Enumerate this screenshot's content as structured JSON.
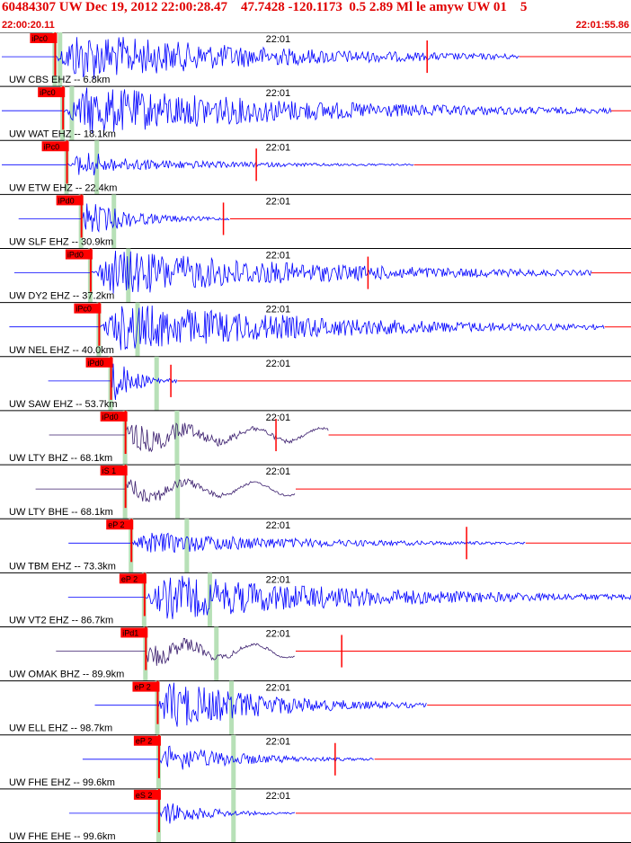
{
  "header": {
    "title": "60484307 UW Dec 19, 2012 22:00:28.47    47.7428 -120.1173  0.5 2.89 Ml le amyw UW 01    5",
    "start_time": "22:00:20.11",
    "end_time": "22:01:55.86"
  },
  "colors": {
    "title": "#e00000",
    "wave": "#0000ff",
    "wave_horizontal": "#3b1e6e",
    "pick": "#ff0000",
    "s_window": "#b7e0b7",
    "grid": "#000000"
  },
  "chart_data": {
    "type": "line",
    "title": "60484307 UW Dec 19, 2012 22:00:28.47    47.7428 -120.1173  0.5 2.89 Ml le amyw UW 01    5",
    "x_range": [
      "22:00:20.11",
      "22:01:55.86"
    ],
    "minute_marker": "22:01",
    "traces": [
      {
        "label": "UW CBS EHZ -- 6.8km",
        "pick": "iPc0",
        "p_time_s": 8.4,
        "s_time_s": 9.2,
        "coda_end_s": 74,
        "amp": 1.0,
        "trend": "flat",
        "end_pick_s": 65
      },
      {
        "label": "UW WAT EHZ -- 18.1km",
        "pick": "iPc0",
        "p_time_s": 9.6,
        "s_time_s": 11.0,
        "coda_end_s": 88,
        "amp": 1.0,
        "trend": "flat",
        "end_pick_s": null
      },
      {
        "label": "UW ETW EHZ -- 22.4km",
        "pick": "iPc0",
        "p_time_s": 10.2,
        "s_time_s": 14.8,
        "coda_end_s": 58,
        "amp": 0.55,
        "trend": "rise",
        "end_pick_s": 39
      },
      {
        "label": "UW SLF EHZ -- 30.9km",
        "pick": "iPd0",
        "p_time_s": 12.4,
        "s_time_s": 17.4,
        "coda_end_s": 30,
        "amp": 0.7,
        "trend": "dip",
        "end_pick_s": 34
      },
      {
        "label": "UW DY2 EHZ -- 37.2km",
        "pick": "iPd0",
        "p_time_s": 13.8,
        "s_time_s": 19.6,
        "coda_end_s": 85,
        "amp": 0.95,
        "trend": "flat",
        "end_pick_s": 56
      },
      {
        "label": "UW NEL EHZ -- 40.0km",
        "pick": "iPc0",
        "p_time_s": 15.1,
        "s_time_s": 21.0,
        "coda_end_s": 87,
        "amp": 1.0,
        "trend": "flat",
        "end_pick_s": null
      },
      {
        "label": "UW SAW EHZ -- 53.7km",
        "pick": "iPd0",
        "p_time_s": 16.9,
        "s_time_s": 23.9,
        "coda_end_s": 22,
        "amp": 0.9,
        "trend": "flat",
        "end_pick_s": 26
      },
      {
        "label": "UW LTY BHZ -- 68.1km",
        "pick": "iPd0",
        "p_time_s": 19.1,
        "s_time_s": 27.0,
        "coda_end_s": 45,
        "amp": 0.55,
        "trend": "swell",
        "end_pick_s": 42
      },
      {
        "label": "UW LTY BHE -- 68.1km",
        "pick": "iS 1",
        "p_time_s": 19.1,
        "s_time_s": 27.1,
        "coda_end_s": 40,
        "amp": 0.4,
        "trend": "swell",
        "end_pick_s": null
      },
      {
        "label": "UW TBM EHZ -- 73.3km",
        "pick": "eP 2",
        "p_time_s": 20.0,
        "s_time_s": 28.5,
        "coda_end_s": 75,
        "amp": 0.45,
        "trend": "flat",
        "end_pick_s": 71
      },
      {
        "label": "UW VT2 EHZ -- 86.7km",
        "pick": "eP 2",
        "p_time_s": 22.0,
        "s_time_s": 32.0,
        "coda_end_s": 95,
        "amp": 0.9,
        "trend": "flat",
        "end_pick_s": null
      },
      {
        "label": "UW OMAK BHZ -- 89.9km",
        "pick": "iPd1",
        "p_time_s": 22.2,
        "s_time_s": 33.0,
        "coda_end_s": 40,
        "amp": 0.5,
        "trend": "swell",
        "end_pick_s": 52
      },
      {
        "label": "UW ELL EHZ -- 98.7km",
        "pick": "eP 2",
        "p_time_s": 24.0,
        "s_time_s": 35.3,
        "coda_end_s": 60,
        "amp": 1.0,
        "trend": "flat",
        "end_pick_s": null
      },
      {
        "label": "UW FHE EHZ -- 99.6km",
        "pick": "eP 2",
        "p_time_s": 24.2,
        "s_time_s": 35.6,
        "coda_end_s": 52,
        "amp": 0.55,
        "trend": "flat",
        "end_pick_s": 51
      },
      {
        "label": "UW FHE EHE -- 99.6km",
        "pick": "eS 2",
        "p_time_s": 24.2,
        "s_time_s": 35.6,
        "coda_end_s": 40,
        "amp": 0.5,
        "trend": "flat",
        "end_pick_s": null
      }
    ]
  }
}
